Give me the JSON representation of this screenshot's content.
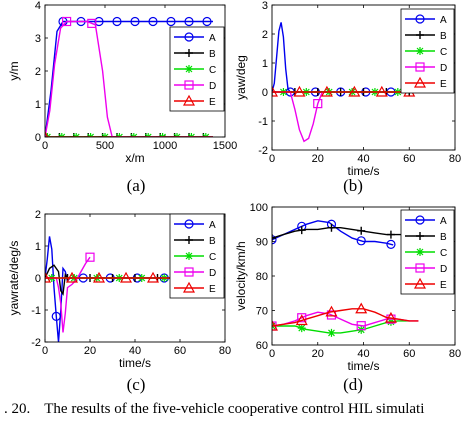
{
  "colors": {
    "A": "#0000ee",
    "B": "#000000",
    "C": "#00dd00",
    "D": "#ee00ee",
    "E": "#ee0000"
  },
  "caption": {
    "lead": ". 20.",
    "text": "The results of the five-vehicle cooperative control HIL simulati"
  },
  "chart_data": [
    {
      "type": "line",
      "panel_label": "(a)",
      "xlabel": "x/m",
      "ylabel": "y/m",
      "xlim": [
        0,
        1500
      ],
      "ylim": [
        0,
        4
      ],
      "xticks": [
        0,
        500,
        1000,
        1500
      ],
      "yticks": [
        0,
        1,
        2,
        3,
        4
      ],
      "grid": false,
      "legend_position": "right",
      "series": [
        {
          "name": "A",
          "marker": "circle",
          "x": [
            0,
            50,
            100,
            150,
            200,
            300,
            400,
            500,
            600,
            700,
            800,
            900,
            1000,
            1100,
            1200,
            1300,
            1400
          ],
          "y": [
            0,
            1.4,
            3.2,
            3.5,
            3.5,
            3.5,
            3.5,
            3.5,
            3.5,
            3.5,
            3.5,
            3.5,
            3.5,
            3.5,
            3.5,
            3.5,
            3.5
          ],
          "markers_x": [
            150,
            300,
            450,
            600,
            750,
            900,
            1050,
            1200,
            1350
          ]
        },
        {
          "name": "B",
          "marker": "plus",
          "x": [
            0,
            1400
          ],
          "y": [
            0,
            0
          ],
          "markers_x": [
            0,
            120,
            240,
            360,
            480,
            600,
            720,
            840,
            960,
            1080,
            1200,
            1320
          ]
        },
        {
          "name": "C",
          "marker": "asterisk",
          "x": [
            0,
            1400
          ],
          "y": [
            0,
            0
          ],
          "markers_x": [
            20,
            140,
            260,
            380,
            500,
            620,
            740,
            860,
            980,
            1100,
            1220,
            1340
          ]
        },
        {
          "name": "D",
          "marker": "square",
          "x": [
            0,
            40,
            80,
            130,
            180,
            250,
            350,
            420,
            480,
            520,
            560,
            1400
          ],
          "y": [
            0,
            0.8,
            2.2,
            3.3,
            3.5,
            3.5,
            3.5,
            3.4,
            2.0,
            0.6,
            0,
            0
          ],
          "markers_x": [
            180,
            390
          ]
        },
        {
          "name": "E",
          "marker": "triangle",
          "x": [
            0,
            1400
          ],
          "y": [
            0,
            0
          ],
          "markers_x": [
            0
          ]
        }
      ]
    },
    {
      "type": "line",
      "panel_label": "(b)",
      "xlabel": "time/s",
      "ylabel": "yaw/deg",
      "xlim": [
        0,
        80
      ],
      "ylim": [
        -2,
        3
      ],
      "xticks": [
        0,
        20,
        40,
        60,
        80
      ],
      "yticks": [
        -2,
        -1,
        0,
        1,
        2,
        3
      ],
      "grid": false,
      "legend_position": "top-right",
      "series": [
        {
          "name": "A",
          "marker": "circle",
          "x": [
            0,
            1,
            2,
            3,
            4,
            5,
            6,
            7,
            8,
            10,
            60
          ],
          "y": [
            0,
            0.3,
            1.2,
            2.1,
            2.4,
            1.9,
            0.8,
            0.1,
            0,
            0,
            0
          ],
          "markers_x": [
            8,
            19,
            30,
            41,
            52
          ]
        },
        {
          "name": "B",
          "marker": "plus",
          "x": [
            0,
            61
          ],
          "y": [
            0,
            0
          ],
          "markers_x": [
            0,
            10,
            20,
            30,
            40,
            50,
            60
          ]
        },
        {
          "name": "C",
          "marker": "asterisk",
          "x": [
            0,
            61
          ],
          "y": [
            0,
            0
          ],
          "markers_x": [
            5,
            15,
            25,
            35,
            45,
            55
          ]
        },
        {
          "name": "D",
          "marker": "square",
          "x": [
            0,
            8,
            10,
            12,
            14,
            16,
            18,
            20,
            22
          ],
          "y": [
            0,
            0,
            -0.6,
            -1.3,
            -1.7,
            -1.6,
            -1.1,
            -0.4,
            0
          ],
          "markers_x": [
            20
          ]
        },
        {
          "name": "E",
          "marker": "triangle",
          "x": [
            0,
            61
          ],
          "y": [
            0,
            0
          ],
          "markers_x": [
            0,
            12,
            24,
            36,
            48,
            60
          ]
        }
      ]
    },
    {
      "type": "line",
      "panel_label": "(c)",
      "xlabel": "time/s",
      "ylabel": "yawrate/deg/s",
      "xlim": [
        0,
        80
      ],
      "ylim": [
        -2,
        2
      ],
      "xticks": [
        0,
        20,
        40,
        60,
        80
      ],
      "yticks": [
        -2,
        -1,
        0,
        1,
        2
      ],
      "grid": false,
      "legend_position": "top-right",
      "series": [
        {
          "name": "A",
          "marker": "circle",
          "x": [
            0,
            1,
            2,
            3,
            4,
            5,
            6,
            7,
            8,
            9,
            10,
            11,
            13,
            60
          ],
          "y": [
            0,
            0.6,
            1.3,
            0.9,
            -0.3,
            -1.2,
            -2.0,
            -1.0,
            0.3,
            0.2,
            -0.1,
            0,
            0,
            0
          ],
          "markers_x": [
            5,
            17,
            29,
            41,
            53
          ]
        },
        {
          "name": "B",
          "marker": "plus",
          "x": [
            0,
            2,
            4,
            6,
            7,
            8,
            9,
            10,
            60
          ],
          "y": [
            0,
            0.3,
            0.4,
            0.2,
            -0.4,
            -0.5,
            0.1,
            0,
            0
          ],
          "markers_x": [
            0,
            10,
            20,
            30,
            40,
            50,
            60
          ]
        },
        {
          "name": "C",
          "marker": "asterisk",
          "x": [
            0,
            60
          ],
          "y": [
            0,
            0
          ],
          "markers_x": [
            3,
            13,
            23,
            33,
            43,
            53
          ]
        },
        {
          "name": "D",
          "marker": "square",
          "x": [
            0,
            5,
            6,
            7,
            8,
            9,
            10,
            12,
            14,
            16,
            18,
            20
          ],
          "y": [
            0,
            0,
            -0.3,
            -0.8,
            -1.7,
            -1.1,
            -0.3,
            -0.2,
            -0.05,
            0.2,
            0.45,
            0.65
          ],
          "markers_x": [
            20
          ]
        },
        {
          "name": "E",
          "marker": "triangle",
          "x": [
            0,
            60
          ],
          "y": [
            0,
            0
          ],
          "markers_x": [
            0,
            12,
            24,
            36,
            48,
            60
          ]
        }
      ]
    },
    {
      "type": "line",
      "panel_label": "(d)",
      "xlabel": "time/s",
      "ylabel": "velocity/km/h",
      "xlim": [
        0,
        80
      ],
      "ylim": [
        60,
        100
      ],
      "xticks": [
        0,
        20,
        40,
        60,
        80
      ],
      "yticks": [
        60,
        70,
        80,
        90,
        100
      ],
      "grid": false,
      "legend_position": "right",
      "series": [
        {
          "name": "A",
          "marker": "circle",
          "x": [
            0,
            5,
            10,
            15,
            20,
            25,
            30,
            35,
            40,
            45,
            50,
            53
          ],
          "y": [
            90.5,
            92,
            93.5,
            95,
            96,
            95.5,
            93,
            91,
            90,
            90,
            89.5,
            89
          ],
          "markers_x": [
            0,
            13,
            26,
            39,
            52
          ]
        },
        {
          "name": "B",
          "marker": "plus",
          "x": [
            0,
            5,
            10,
            15,
            20,
            25,
            30,
            35,
            40,
            45,
            50,
            55,
            60
          ],
          "y": [
            91,
            92,
            93,
            93.5,
            93.5,
            94,
            94,
            93.5,
            93,
            92.5,
            92,
            92,
            92
          ],
          "markers_x": [
            0,
            13,
            26,
            39,
            52
          ]
        },
        {
          "name": "C",
          "marker": "asterisk",
          "x": [
            0,
            5,
            10,
            15,
            20,
            25,
            30,
            35,
            40,
            45,
            50,
            55,
            60
          ],
          "y": [
            65.5,
            65.5,
            65.5,
            64.5,
            64,
            63.5,
            63.5,
            64,
            64.5,
            65.5,
            66.5,
            67,
            67
          ],
          "markers_x": [
            0,
            13,
            26,
            39,
            52
          ]
        },
        {
          "name": "D",
          "marker": "square",
          "x": [
            0,
            5,
            10,
            15,
            20,
            25,
            30,
            35,
            40,
            45,
            50,
            55,
            60,
            64
          ],
          "y": [
            65.5,
            66,
            67,
            68.5,
            69.5,
            69,
            67.5,
            66,
            65.5,
            66.5,
            67.5,
            67.5,
            67,
            67
          ],
          "markers_x": [
            0,
            13,
            26,
            39,
            52
          ]
        },
        {
          "name": "E",
          "marker": "triangle",
          "x": [
            0,
            5,
            10,
            15,
            20,
            25,
            30,
            35,
            40,
            45,
            50,
            55,
            60,
            64
          ],
          "y": [
            65.5,
            66,
            66.5,
            67.5,
            68.5,
            69.5,
            70,
            70.5,
            70.5,
            69.5,
            68,
            67.5,
            67,
            67
          ],
          "markers_x": [
            0,
            13,
            26,
            39,
            52
          ]
        }
      ]
    }
  ]
}
